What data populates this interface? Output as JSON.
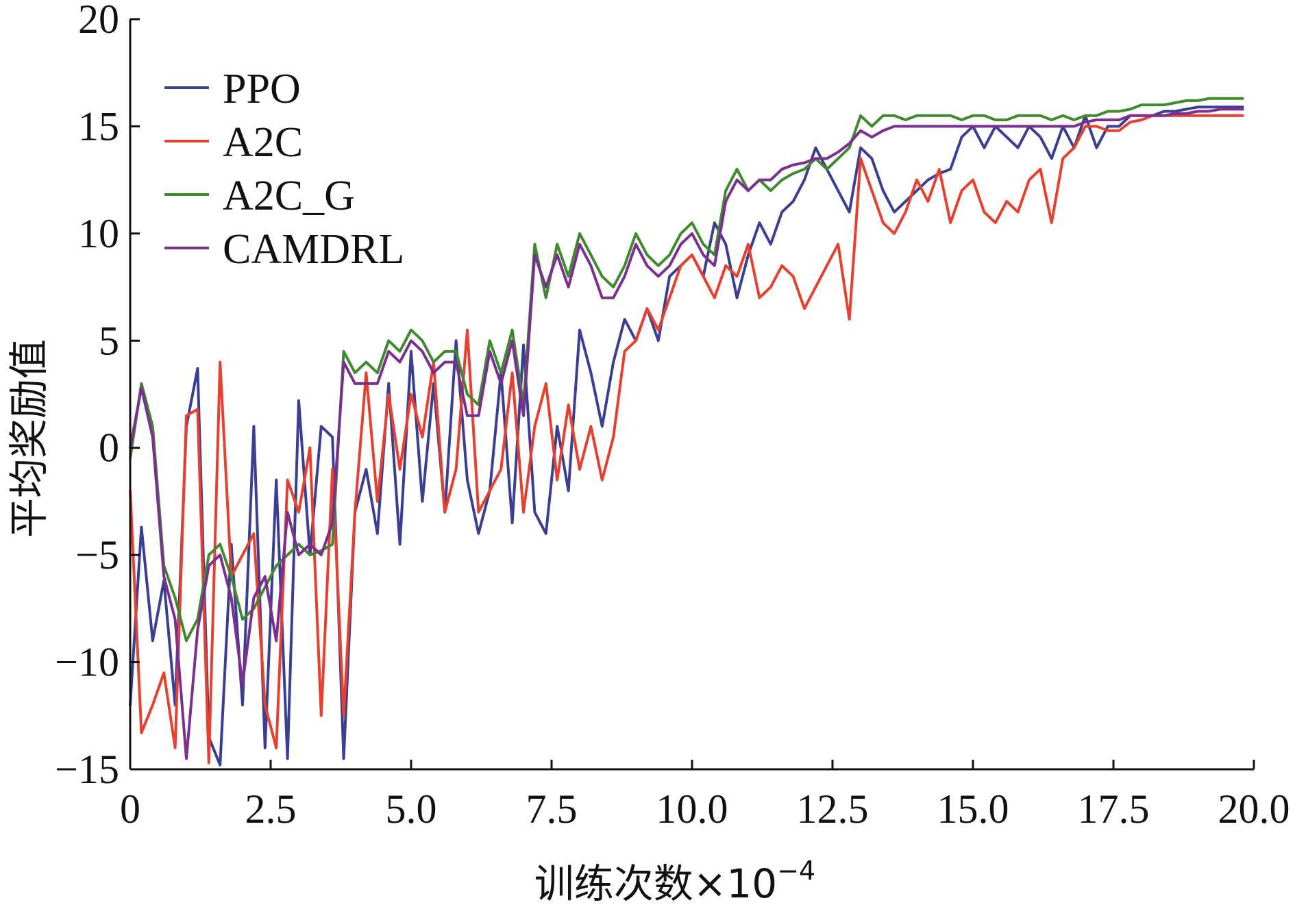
{
  "colors": {
    "PPO": "#3a3f94",
    "A2C": "#e8402f",
    "A2C_G": "#3f8a2e",
    "CAMDRL": "#7b2f8e"
  },
  "chart_data": {
    "type": "line",
    "xlabel": "训练次数×10",
    "xlabel_exponent": "−4",
    "ylabel": "平均奖励值",
    "xlim": [
      0,
      20
    ],
    "ylim": [
      -15,
      20
    ],
    "xticks": [
      0,
      2.5,
      5.0,
      7.5,
      10.0,
      12.5,
      15.0,
      17.5,
      20.0
    ],
    "xtick_labels": [
      "0",
      "2.5",
      "5.0",
      "7.5",
      "10.0",
      "12.5",
      "15.0",
      "17.5",
      "20.0"
    ],
    "yticks": [
      -15,
      -10,
      -5,
      0,
      5,
      10,
      15,
      20
    ],
    "ytick_labels": [
      "−15",
      "−10",
      "−5",
      "0",
      "5",
      "10",
      "15",
      "20"
    ],
    "legend_position": "top-left",
    "grid": false,
    "x": [
      0.0,
      0.2,
      0.4,
      0.6,
      0.8,
      1.0,
      1.2,
      1.4,
      1.6,
      1.8,
      2.0,
      2.2,
      2.4,
      2.6,
      2.8,
      3.0,
      3.2,
      3.4,
      3.6,
      3.8,
      4.0,
      4.2,
      4.4,
      4.6,
      4.8,
      5.0,
      5.2,
      5.4,
      5.6,
      5.8,
      6.0,
      6.2,
      6.4,
      6.6,
      6.8,
      7.0,
      7.2,
      7.4,
      7.6,
      7.8,
      8.0,
      8.2,
      8.4,
      8.6,
      8.8,
      9.0,
      9.2,
      9.4,
      9.6,
      9.8,
      10.0,
      10.2,
      10.4,
      10.6,
      10.8,
      11.0,
      11.2,
      11.4,
      11.6,
      11.8,
      12.0,
      12.2,
      12.4,
      12.6,
      12.8,
      13.0,
      13.2,
      13.4,
      13.6,
      13.8,
      14.0,
      14.2,
      14.4,
      14.6,
      14.8,
      15.0,
      15.2,
      15.4,
      15.6,
      15.8,
      16.0,
      16.2,
      16.4,
      16.6,
      16.8,
      17.0,
      17.2,
      17.4,
      17.6,
      17.8,
      18.0,
      18.2,
      18.4,
      18.6,
      18.8,
      19.0,
      19.2,
      19.4,
      19.6,
      19.8
    ],
    "series": [
      {
        "name": "PPO",
        "values": [
          -12.0,
          -3.7,
          -9.0,
          -6.2,
          -12.0,
          1.0,
          3.7,
          -13.5,
          -14.8,
          -4.5,
          -12.0,
          1.0,
          -14.0,
          -1.5,
          -14.5,
          2.2,
          -5.0,
          1.0,
          0.5,
          -14.5,
          -3.0,
          -1.0,
          -4.0,
          3.0,
          -4.5,
          4.5,
          -2.5,
          3.0,
          -3.0,
          5.0,
          -1.5,
          -4.0,
          -2.0,
          3.5,
          -3.5,
          4.8,
          -3.0,
          -4.0,
          1.0,
          -2.0,
          5.5,
          3.5,
          1.0,
          4.0,
          6.0,
          5.0,
          6.5,
          5.0,
          8.0,
          8.5,
          9.0,
          8.0,
          10.5,
          9.5,
          7.0,
          9.0,
          10.5,
          9.5,
          11.0,
          11.5,
          12.5,
          14.0,
          13.0,
          12.0,
          11.0,
          14.0,
          13.5,
          12.0,
          11.0,
          11.5,
          12.0,
          12.5,
          12.8,
          13.0,
          14.5,
          15.0,
          14.0,
          15.0,
          14.5,
          14.0,
          15.0,
          14.5,
          13.5,
          15.0,
          14.0,
          15.5,
          14.0,
          15.0,
          15.0,
          15.5,
          15.5,
          15.5,
          15.7,
          15.7,
          15.8,
          15.9,
          15.9,
          15.9,
          15.9,
          15.9
        ]
      },
      {
        "name": "A2C",
        "values": [
          -2.0,
          -13.3,
          -12.0,
          -10.5,
          -14.0,
          1.5,
          1.8,
          -14.7,
          4.0,
          -6.0,
          -5.0,
          -4.0,
          -12.0,
          -14.0,
          -1.5,
          -3.0,
          0.0,
          -12.5,
          -1.0,
          -12.5,
          -3.0,
          3.5,
          -2.5,
          2.5,
          -1.0,
          2.5,
          0.5,
          4.0,
          -3.0,
          -1.0,
          5.5,
          -3.0,
          -2.0,
          -1.0,
          3.5,
          -3.0,
          1.0,
          3.0,
          -1.5,
          2.0,
          -1.0,
          1.0,
          -1.5,
          0.5,
          4.5,
          5.0,
          6.5,
          5.5,
          7.0,
          8.5,
          9.0,
          8.0,
          7.0,
          8.5,
          8.0,
          9.5,
          7.0,
          7.5,
          8.5,
          8.0,
          6.5,
          7.5,
          8.5,
          9.5,
          6.0,
          13.5,
          12.0,
          10.5,
          10.0,
          11.0,
          12.5,
          11.5,
          13.0,
          10.5,
          12.0,
          12.5,
          11.0,
          10.5,
          11.5,
          11.0,
          12.5,
          13.0,
          10.5,
          13.5,
          14.0,
          15.0,
          15.0,
          14.8,
          14.8,
          15.2,
          15.3,
          15.5,
          15.5,
          15.5,
          15.5,
          15.5,
          15.5,
          15.5,
          15.5,
          15.5
        ]
      },
      {
        "name": "A2C_G",
        "values": [
          -0.5,
          3.0,
          1.0,
          -5.5,
          -7.0,
          -9.0,
          -8.0,
          -5.0,
          -4.5,
          -6.0,
          -8.0,
          -7.5,
          -6.5,
          -5.5,
          -5.0,
          -4.5,
          -5.0,
          -4.8,
          -4.5,
          4.5,
          3.5,
          4.0,
          3.5,
          5.0,
          4.5,
          5.5,
          5.0,
          4.0,
          4.5,
          4.5,
          2.5,
          2.0,
          5.0,
          3.5,
          5.5,
          2.0,
          9.5,
          7.0,
          9.5,
          8.0,
          10.0,
          9.0,
          8.0,
          7.5,
          8.5,
          10.0,
          9.0,
          8.5,
          9.0,
          10.0,
          10.5,
          9.5,
          9.0,
          12.0,
          13.0,
          12.0,
          12.5,
          12.0,
          12.5,
          12.8,
          13.0,
          13.5,
          13.0,
          13.5,
          14.0,
          15.5,
          15.0,
          15.5,
          15.5,
          15.3,
          15.5,
          15.5,
          15.5,
          15.5,
          15.3,
          15.5,
          15.5,
          15.3,
          15.3,
          15.5,
          15.5,
          15.5,
          15.3,
          15.5,
          15.3,
          15.5,
          15.5,
          15.7,
          15.7,
          15.8,
          16.0,
          16.0,
          16.0,
          16.1,
          16.2,
          16.2,
          16.3,
          16.3,
          16.3,
          16.3
        ]
      },
      {
        "name": "CAMDRL",
        "values": [
          0.0,
          2.8,
          0.5,
          -6.0,
          -8.0,
          -14.5,
          -8.5,
          -5.5,
          -5.0,
          -7.0,
          -11.0,
          -7.0,
          -6.0,
          -9.0,
          -3.0,
          -5.0,
          -4.5,
          -5.0,
          -3.5,
          4.0,
          3.0,
          3.0,
          3.0,
          4.5,
          4.0,
          5.0,
          4.5,
          3.5,
          4.0,
          4.0,
          1.5,
          1.5,
          4.5,
          3.0,
          5.0,
          1.5,
          9.0,
          7.5,
          9.0,
          7.5,
          9.5,
          8.5,
          7.0,
          7.0,
          8.0,
          9.5,
          8.5,
          8.0,
          8.5,
          9.5,
          10.0,
          9.0,
          8.5,
          11.5,
          12.5,
          12.0,
          12.5,
          12.5,
          13.0,
          13.2,
          13.3,
          13.5,
          13.5,
          13.8,
          14.2,
          14.8,
          14.5,
          14.8,
          15.0,
          15.0,
          15.0,
          15.0,
          15.0,
          15.0,
          15.0,
          15.0,
          15.0,
          15.0,
          15.0,
          15.0,
          15.0,
          15.0,
          15.0,
          15.0,
          15.0,
          15.2,
          15.3,
          15.3,
          15.3,
          15.5,
          15.5,
          15.5,
          15.5,
          15.6,
          15.6,
          15.7,
          15.7,
          15.8,
          15.8,
          15.8
        ]
      }
    ]
  }
}
